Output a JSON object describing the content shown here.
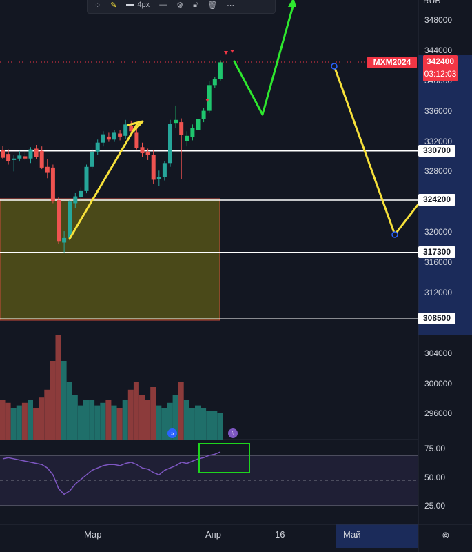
{
  "toolbar": {
    "icons": [
      "grid-icon",
      "pencil-icon",
      "line-style-icon",
      "line-icon",
      "settings-icon",
      "lock-icon",
      "trash-icon",
      "more-icon"
    ],
    "width_label": "4px",
    "colors": {
      "pencil": "#f7e13a"
    }
  },
  "currency_label": "RUB",
  "symbol": "MXM2024",
  "last_price": "342400",
  "countdown": "03:12:03",
  "price_levels": [
    {
      "label": "330700",
      "value": 330700
    },
    {
      "label": "324200",
      "value": 324200
    },
    {
      "label": "317300",
      "value": 317300
    },
    {
      "label": "308500",
      "value": 308500
    }
  ],
  "price_axis": [
    "348000",
    "344000",
    "340000",
    "336000",
    "332000",
    "328000",
    "324000",
    "320000",
    "316000",
    "312000",
    "304000",
    "300000",
    "296000"
  ],
  "rsi_axis": [
    "75.00",
    "50.00",
    "25.00"
  ],
  "time_axis": [
    "Мар",
    "Апр",
    "16",
    "Май"
  ],
  "colors": {
    "background": "#131722",
    "up": "#26a69a",
    "up_bright": "#1fc66e",
    "down": "#ef5350",
    "level_line": "#ffffff",
    "zone_fill": "#6b6a1e",
    "zone_border": "#c94a3a",
    "yellow_path": "#f7e13a",
    "green_path": "#2ee82e",
    "rsi_line": "#7e57c2",
    "rsi_box": "#1ed41e",
    "accent_red": "#f23645"
  },
  "chart_data": {
    "type": "candlestick",
    "ylim": [
      292000,
      352000
    ],
    "candles": [
      {
        "o": 330800,
        "h": 331400,
        "l": 329600,
        "c": 329800
      },
      {
        "o": 330300,
        "h": 330900,
        "l": 328900,
        "c": 329400
      },
      {
        "o": 329500,
        "h": 330200,
        "l": 328000,
        "c": 329700
      },
      {
        "o": 329700,
        "h": 330700,
        "l": 329300,
        "c": 330100
      },
      {
        "o": 330000,
        "h": 330500,
        "l": 329500,
        "c": 329700
      },
      {
        "o": 329700,
        "h": 331200,
        "l": 329100,
        "c": 330900
      },
      {
        "o": 331000,
        "h": 331500,
        "l": 329600,
        "c": 329900
      },
      {
        "o": 330700,
        "h": 331300,
        "l": 328300,
        "c": 328500
      },
      {
        "o": 328600,
        "h": 329600,
        "l": 327100,
        "c": 327800
      },
      {
        "o": 328500,
        "h": 328900,
        "l": 323800,
        "c": 324100
      },
      {
        "o": 324200,
        "h": 324600,
        "l": 318400,
        "c": 318800
      },
      {
        "o": 318600,
        "h": 320100,
        "l": 317300,
        "c": 319200
      },
      {
        "o": 319200,
        "h": 324200,
        "l": 318900,
        "c": 324000
      },
      {
        "o": 323800,
        "h": 325200,
        "l": 323200,
        "c": 324700
      },
      {
        "o": 324600,
        "h": 325900,
        "l": 324200,
        "c": 325400
      },
      {
        "o": 325400,
        "h": 328900,
        "l": 325100,
        "c": 328600
      },
      {
        "o": 328600,
        "h": 331000,
        "l": 328300,
        "c": 330600
      },
      {
        "o": 330600,
        "h": 332200,
        "l": 330200,
        "c": 331800
      },
      {
        "o": 331800,
        "h": 333300,
        "l": 331300,
        "c": 332900
      },
      {
        "o": 332600,
        "h": 333100,
        "l": 331900,
        "c": 332200
      },
      {
        "o": 332200,
        "h": 333500,
        "l": 331900,
        "c": 333100
      },
      {
        "o": 333000,
        "h": 333500,
        "l": 332100,
        "c": 332600
      },
      {
        "o": 332700,
        "h": 334800,
        "l": 332300,
        "c": 334200
      },
      {
        "o": 334000,
        "h": 334700,
        "l": 332900,
        "c": 333300
      },
      {
        "o": 333100,
        "h": 333900,
        "l": 330900,
        "c": 331100
      },
      {
        "o": 331200,
        "h": 331800,
        "l": 329900,
        "c": 330400
      },
      {
        "o": 330500,
        "h": 331000,
        "l": 329500,
        "c": 330200
      },
      {
        "o": 330200,
        "h": 330800,
        "l": 326300,
        "c": 326900
      },
      {
        "o": 327000,
        "h": 328100,
        "l": 326100,
        "c": 327300
      },
      {
        "o": 327300,
        "h": 329400,
        "l": 326800,
        "c": 329100
      },
      {
        "o": 329100,
        "h": 334800,
        "l": 328600,
        "c": 334300
      },
      {
        "o": 334400,
        "h": 336700,
        "l": 333700,
        "c": 334800
      },
      {
        "o": 334500,
        "h": 335000,
        "l": 327000,
        "c": 332800
      },
      {
        "o": 332000,
        "h": 333300,
        "l": 331300,
        "c": 332700
      },
      {
        "o": 332500,
        "h": 334200,
        "l": 332100,
        "c": 333700
      },
      {
        "o": 333500,
        "h": 335300,
        "l": 333000,
        "c": 334900
      },
      {
        "o": 334900,
        "h": 336400,
        "l": 334500,
        "c": 336000
      },
      {
        "o": 336000,
        "h": 339900,
        "l": 335700,
        "c": 339400
      },
      {
        "o": 339400,
        "h": 340500,
        "l": 339000,
        "c": 340200
      },
      {
        "o": 340200,
        "h": 342700,
        "l": 340000,
        "c": 342400
      }
    ],
    "volume": [
      30,
      28,
      24,
      26,
      28,
      30,
      24,
      32,
      38,
      60,
      80,
      60,
      44,
      34,
      26,
      30,
      30,
      26,
      28,
      30,
      26,
      24,
      30,
      38,
      44,
      34,
      30,
      40,
      26,
      24,
      28,
      34,
      44,
      30,
      24,
      26,
      24,
      22,
      22,
      20
    ],
    "rsi": [
      66,
      67,
      66,
      65,
      64,
      63,
      62,
      61,
      58,
      52,
      40,
      35,
      38,
      44,
      48,
      52,
      56,
      58,
      60,
      61,
      61,
      60,
      62,
      63,
      61,
      58,
      57,
      54,
      52,
      56,
      58,
      60,
      63,
      62,
      64,
      66,
      67,
      69,
      70,
      72
    ]
  }
}
